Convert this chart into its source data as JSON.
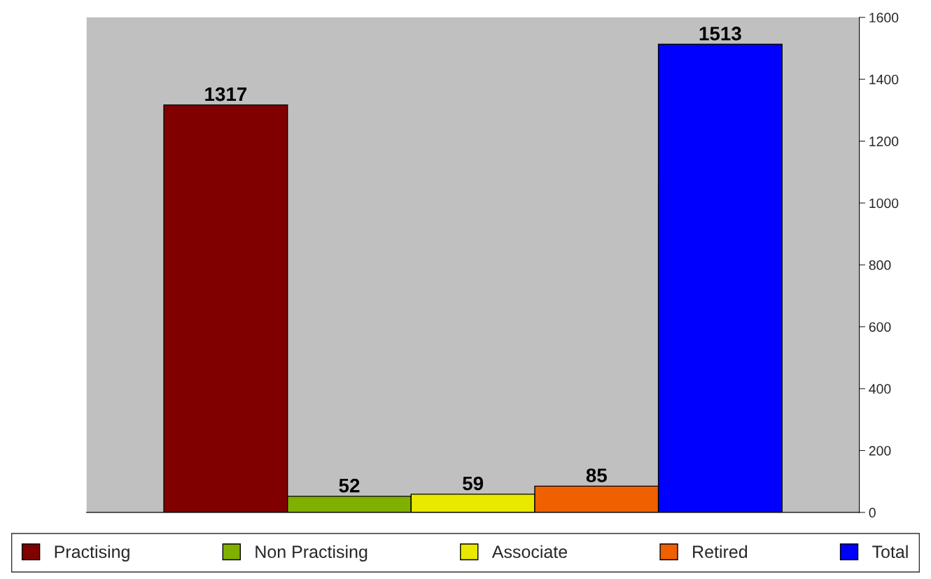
{
  "chart_data": {
    "type": "bar",
    "categories": [
      null
    ],
    "series": [
      {
        "name": "Practising",
        "color": "#800000",
        "values": [
          1317
        ]
      },
      {
        "name": "Non Practising",
        "color": "#80b000",
        "values": [
          52
        ]
      },
      {
        "name": "Associate",
        "color": "#e8e800",
        "values": [
          59
        ]
      },
      {
        "name": "Retired",
        "color": "#f06000",
        "values": [
          85
        ]
      },
      {
        "name": "Total",
        "color": "#0000ff",
        "values": [
          1513
        ]
      }
    ],
    "ylim": [
      0,
      1600
    ],
    "yticks": [
      0,
      200,
      400,
      600,
      800,
      1000,
      1200,
      1400,
      1600
    ],
    "data_labels": true,
    "legend": "bottom",
    "grid": false
  }
}
